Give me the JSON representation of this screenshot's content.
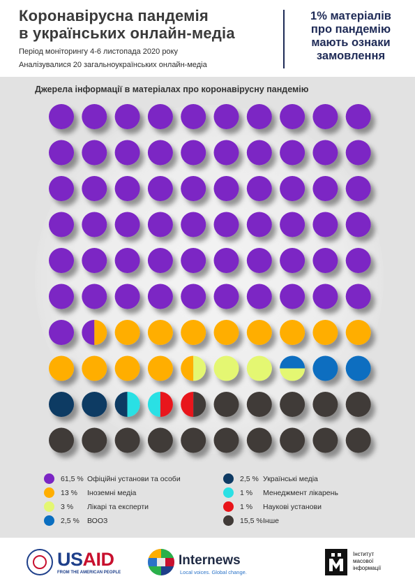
{
  "header": {
    "title_line1": "Коронавірусна пандемія",
    "title_line2": "в українських онлайн-медіа",
    "period": "Період моніторингу 4-6 листопада 2020 року",
    "analyzed": "Аналізувалися 20 загальноукраїнських онлайн-медіа",
    "callout_line1": "1% матеріалів",
    "callout_line2": "про пандемію",
    "callout_line3": "мають ознаки",
    "callout_line4": "замовлення"
  },
  "chart_data": {
    "type": "waffle",
    "title": "Джерела  інформації в матеріалах про коронавірусну пандемію",
    "grid": {
      "rows": 10,
      "cols": 10,
      "unit": 1
    },
    "series": [
      {
        "name": "Офіційні установи та особи",
        "value": 61.5,
        "value_label": "61,5 %",
        "color": "#7b25c4"
      },
      {
        "name": "Іноземні медіа",
        "value": 13,
        "value_label": "13 %",
        "color": "#ffae00"
      },
      {
        "name": "Лікарі та експерти",
        "value": 3,
        "value_label": "3 %",
        "color": "#e4f772"
      },
      {
        "name": "ВООЗ",
        "value": 2.5,
        "value_label": "2,5 %",
        "color": "#0a6ec0"
      },
      {
        "name": "Українські медіа",
        "value": 2.5,
        "value_label": "2,5 %",
        "color": "#0e3a63"
      },
      {
        "name": "Менеджмент лікарень",
        "value": 1,
        "value_label": "1 %",
        "color": "#2ae0e4"
      },
      {
        "name": "Наукові установи",
        "value": 1,
        "value_label": "1 %",
        "color": "#e8141a"
      },
      {
        "name": "Інше",
        "value": 15.5,
        "value_label": "15,5 %",
        "color": "#403a37"
      }
    ],
    "cells": [
      [
        "#7b25c4",
        "#7b25c4",
        "#7b25c4",
        "#7b25c4",
        "#7b25c4",
        "#7b25c4",
        "#7b25c4",
        "#7b25c4",
        "#7b25c4",
        "#7b25c4"
      ],
      [
        "#7b25c4",
        "#7b25c4",
        "#7b25c4",
        "#7b25c4",
        "#7b25c4",
        "#7b25c4",
        "#7b25c4",
        "#7b25c4",
        "#7b25c4",
        "#7b25c4"
      ],
      [
        "#7b25c4",
        "#7b25c4",
        "#7b25c4",
        "#7b25c4",
        "#7b25c4",
        "#7b25c4",
        "#7b25c4",
        "#7b25c4",
        "#7b25c4",
        "#7b25c4"
      ],
      [
        "#7b25c4",
        "#7b25c4",
        "#7b25c4",
        "#7b25c4",
        "#7b25c4",
        "#7b25c4",
        "#7b25c4",
        "#7b25c4",
        "#7b25c4",
        "#7b25c4"
      ],
      [
        "#7b25c4",
        "#7b25c4",
        "#7b25c4",
        "#7b25c4",
        "#7b25c4",
        "#7b25c4",
        "#7b25c4",
        "#7b25c4",
        "#7b25c4",
        "#7b25c4"
      ],
      [
        "#7b25c4",
        "#7b25c4",
        "#7b25c4",
        "#7b25c4",
        "#7b25c4",
        "#7b25c4",
        "#7b25c4",
        "#7b25c4",
        "#7b25c4",
        "#7b25c4"
      ],
      [
        "#7b25c4",
        [
          "#7b25c4",
          "#ffae00",
          "v"
        ],
        "#ffae00",
        "#ffae00",
        "#ffae00",
        "#ffae00",
        "#ffae00",
        "#ffae00",
        "#ffae00",
        "#ffae00"
      ],
      [
        "#ffae00",
        "#ffae00",
        "#ffae00",
        "#ffae00",
        [
          "#ffae00",
          "#e4f772",
          "v"
        ],
        "#e4f772",
        "#e4f772",
        [
          "#0a6ec0",
          "#e4f772",
          "h"
        ],
        "#0a6ec0",
        "#0a6ec0"
      ],
      [
        "#0e3a63",
        "#0e3a63",
        [
          "#0e3a63",
          "#2ae0e4",
          "v"
        ],
        [
          "#2ae0e4",
          "#e8141a",
          "v"
        ],
        [
          "#e8141a",
          "#403a37",
          "v"
        ],
        "#403a37",
        "#403a37",
        "#403a37",
        "#403a37",
        "#403a37"
      ],
      [
        "#403a37",
        "#403a37",
        "#403a37",
        "#403a37",
        "#403a37",
        "#403a37",
        "#403a37",
        "#403a37",
        "#403a37",
        "#403a37"
      ]
    ]
  },
  "legend_order": [
    0,
    4,
    1,
    5,
    2,
    6,
    3,
    7
  ],
  "footer": {
    "usaid_word_us": "US",
    "usaid_word_aid": "AID",
    "usaid_tagline": "FROM THE AMERICAN PEOPLE",
    "internews_word": "Internews",
    "internews_tagline": "Local voices. Global change.",
    "imi_line1": "Інститут",
    "imi_line2": "масової",
    "imi_line3": "інформації"
  }
}
